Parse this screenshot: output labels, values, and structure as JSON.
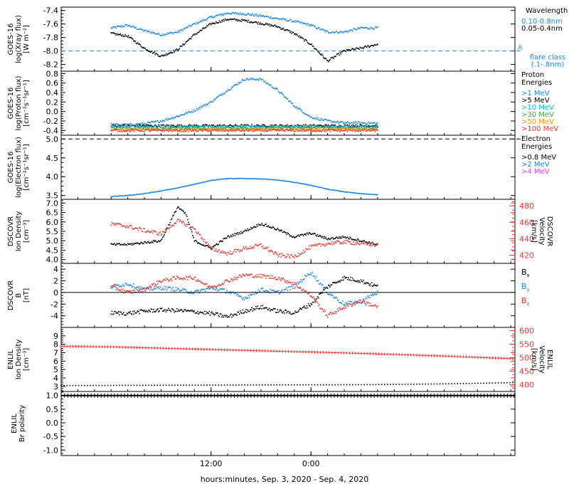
{
  "chart_data": [
    {
      "type": "scatter",
      "panel": "goes_xray",
      "ylabel": [
        "GOES-16",
        "log(Xray flux)",
        "[W m⁻²]"
      ],
      "ylim": [
        -8.3,
        -7.35
      ],
      "yticks": [
        "-7.4",
        "-7.6",
        "-7.8",
        "-8.0",
        "-8.2"
      ],
      "yticks_values": [
        -7.4,
        -7.6,
        -7.8,
        -8.0,
        -8.2
      ],
      "legend_title": "Wavelength",
      "series": [
        {
          "name": "0.10-0.8nm",
          "color": "#1e88e5",
          "x": [
            0,
            2,
            4,
            6,
            8,
            10,
            12,
            14,
            16,
            18,
            20,
            22,
            24,
            26,
            28,
            30,
            32
          ],
          "values": [
            -7.66,
            -7.62,
            -7.7,
            -7.76,
            -7.72,
            -7.6,
            -7.5,
            -7.44,
            -7.45,
            -7.48,
            -7.52,
            -7.56,
            -7.62,
            -7.72,
            -7.72,
            -7.66,
            -7.66
          ]
        },
        {
          "name": "0.05-0.4nm",
          "color": "#000000",
          "x": [
            0,
            2,
            4,
            6,
            8,
            10,
            12,
            14,
            16,
            18,
            20,
            22,
            24,
            26,
            28,
            30,
            32
          ],
          "values": [
            -7.74,
            -7.78,
            -7.96,
            -8.08,
            -7.98,
            -7.76,
            -7.6,
            -7.53,
            -7.55,
            -7.59,
            -7.64,
            -7.74,
            -7.9,
            -8.15,
            -8.0,
            -7.96,
            -7.9
          ]
        }
      ],
      "reference_line": {
        "value": -8.0,
        "color": "#1e88e5",
        "label": [
          "flare class",
          "(.1-.8nm)"
        ],
        "marker": "A"
      }
    },
    {
      "type": "scatter",
      "panel": "goes_proton",
      "ylabel": [
        "GOES-16",
        "log(Proton flux)",
        "[cm⁻²s⁻¹sr⁻¹]"
      ],
      "ylim": [
        -0.5,
        0.85
      ],
      "yticks": [
        "0.8",
        "0.6",
        "0.4",
        "0.2",
        "0.0",
        "-0.2",
        "-0.4"
      ],
      "yticks_values": [
        0.8,
        0.6,
        0.4,
        0.2,
        0.0,
        -0.2,
        -0.4
      ],
      "legend_title": [
        "Proton",
        "Energies"
      ],
      "series": [
        {
          "name": ">1 MeV",
          "color": "#1e88e5",
          "x": [
            0,
            2,
            4,
            6,
            8,
            10,
            12,
            14,
            16,
            18,
            20,
            22,
            24,
            26,
            28,
            30,
            32
          ],
          "values": [
            -0.28,
            -0.28,
            -0.26,
            -0.2,
            -0.1,
            0.02,
            0.2,
            0.45,
            0.68,
            0.68,
            0.45,
            0.12,
            -0.12,
            -0.2,
            -0.24,
            -0.24,
            -0.25
          ]
        },
        {
          "name": ">5 MeV",
          "color": "#000000",
          "x": [
            0,
            8,
            16,
            24,
            32
          ],
          "values": [
            -0.3,
            -0.3,
            -0.3,
            -0.3,
            -0.3
          ]
        },
        {
          "name": ">10 MeV",
          "color": "#00bcd4",
          "x": [
            0,
            8,
            16,
            24,
            32
          ],
          "values": [
            -0.32,
            -0.32,
            -0.32,
            -0.32,
            -0.32
          ]
        },
        {
          "name": ">30 MeV",
          "color": "#43a047",
          "x": [
            0,
            8,
            16,
            24,
            32
          ],
          "values": [
            -0.35,
            -0.35,
            -0.35,
            -0.35,
            -0.35
          ]
        },
        {
          "name": ">50 MeV",
          "color": "#ff9800",
          "x": [
            0,
            8,
            16,
            24,
            32
          ],
          "values": [
            -0.38,
            -0.38,
            -0.38,
            -0.38,
            -0.38
          ]
        },
        {
          "name": ">100 MeV",
          "color": "#e53935",
          "x": [
            0,
            8,
            16,
            24,
            32
          ],
          "values": [
            -0.4,
            -0.4,
            -0.4,
            -0.4,
            -0.4
          ]
        }
      ]
    },
    {
      "type": "scatter",
      "panel": "goes_electron",
      "ylabel": [
        "GOES-16",
        "log(Electron flux)",
        "[cm⁻²s⁻¹sr⁻¹]"
      ],
      "ylim": [
        3.4,
        5.1
      ],
      "yticks": [
        "5.0",
        "4.5",
        "4.0",
        "3.5"
      ],
      "yticks_values": [
        5.0,
        4.5,
        4.0,
        3.5
      ],
      "legend_title": [
        "Electron",
        "Energies"
      ],
      "series": [
        {
          "name": ">0.8 MeV",
          "color": "#000000",
          "x": [],
          "values": []
        },
        {
          "name": ">2 MeV",
          "color": "#1e88e5",
          "x": [
            0,
            2,
            4,
            6,
            8,
            10,
            12,
            14,
            16,
            18,
            20,
            22,
            24,
            26,
            28,
            30,
            32
          ],
          "values": [
            3.47,
            3.5,
            3.55,
            3.62,
            3.7,
            3.8,
            3.9,
            3.95,
            3.95,
            3.94,
            3.91,
            3.85,
            3.77,
            3.67,
            3.6,
            3.55,
            3.52
          ]
        },
        {
          "name": ">4 MeV",
          "color": "#e040fb",
          "x": [],
          "values": []
        }
      ],
      "reference_line": {
        "value": 5.0,
        "color": "#000000"
      }
    },
    {
      "type": "scatter",
      "panel": "dscovr_plasma",
      "ylabel": [
        "DSCOVR",
        "Ion Density",
        "[cm⁻³]"
      ],
      "ylabel_right": [
        "DSCOVR",
        "Velocity",
        "[km/s]"
      ],
      "ylim": [
        3.8,
        7.2
      ],
      "ylim_right": [
        410,
        488
      ],
      "yticks": [
        "7.0",
        "6.5",
        "6.0",
        "5.5",
        "5.0",
        "4.5",
        "4.0"
      ],
      "yticks_values": [
        7.0,
        6.5,
        6.0,
        5.5,
        5.0,
        4.5,
        4.0
      ],
      "yticks_right": [
        "480",
        "460",
        "440",
        "420"
      ],
      "yticks_right_values": [
        480,
        460,
        440,
        420
      ],
      "series": [
        {
          "name": "Ion Density",
          "color": "#000000",
          "axis": "left",
          "x": [
            0,
            2,
            4,
            6,
            8,
            9,
            10,
            12,
            14,
            16,
            18,
            20,
            22,
            24,
            26,
            28,
            30,
            32
          ],
          "values": [
            4.8,
            4.8,
            4.9,
            5.0,
            6.8,
            6.4,
            5.0,
            4.6,
            5.2,
            5.5,
            5.9,
            5.6,
            5.2,
            5.4,
            5.1,
            5.2,
            5.0,
            4.8
          ]
        },
        {
          "name": "Velocity",
          "color": "#e53935",
          "axis": "right",
          "x": [
            0,
            2,
            4,
            6,
            8,
            10,
            12,
            14,
            16,
            18,
            20,
            22,
            24,
            26,
            28,
            30,
            32
          ],
          "values": [
            458,
            455,
            450,
            446,
            462,
            452,
            428,
            422,
            428,
            432,
            420,
            418,
            430,
            434,
            436,
            434,
            432
          ]
        }
      ]
    },
    {
      "type": "scatter",
      "panel": "dscovr_mag",
      "ylabel": [
        "DSCOVR",
        "B",
        "[nT]"
      ],
      "ylim": [
        -6,
        5
      ],
      "yticks": [
        "4",
        "2",
        "0",
        "-2",
        "-4"
      ],
      "yticks_values": [
        4,
        2,
        0,
        -2,
        -4
      ],
      "series": [
        {
          "name": "Bx",
          "label": "B",
          "subscript": "x",
          "color": "#000000",
          "x": [
            0,
            2,
            4,
            6,
            8,
            10,
            12,
            14,
            16,
            18,
            20,
            22,
            24,
            26,
            28,
            30,
            32
          ],
          "values": [
            -3.5,
            -3.6,
            -3.2,
            -3.0,
            -3.1,
            -3.3,
            -3.6,
            -4.2,
            -3.2,
            -2.5,
            -3.2,
            -3.5,
            -2.0,
            1.0,
            2.5,
            2.0,
            1.0
          ]
        },
        {
          "name": "By",
          "label": "B",
          "subscript": "y",
          "color": "#1e88e5",
          "x": [
            0,
            2,
            4,
            6,
            8,
            10,
            12,
            14,
            16,
            18,
            20,
            22,
            24,
            26,
            28,
            30,
            32
          ],
          "values": [
            1.0,
            1.5,
            0.5,
            0.8,
            0.5,
            0.0,
            0.8,
            0.2,
            -1.0,
            0.5,
            0.0,
            1.0,
            3.5,
            0.0,
            -2.0,
            -1.5,
            0.0
          ]
        },
        {
          "name": "Bz",
          "label": "B",
          "subscript": "z",
          "color": "#e53935",
          "x": [
            0,
            2,
            4,
            6,
            8,
            10,
            12,
            14,
            16,
            18,
            20,
            22,
            24,
            26,
            28,
            30,
            32
          ],
          "values": [
            1.0,
            0.0,
            0.5,
            2.0,
            2.5,
            2.5,
            0.8,
            2.0,
            3.0,
            2.8,
            2.5,
            1.5,
            -0.5,
            -4.0,
            -2.5,
            -1.5,
            -2.5
          ]
        }
      ]
    },
    {
      "type": "scatter",
      "panel": "enlil_plasma",
      "ylabel": [
        "ENLIL",
        "Ion Density",
        "[cm⁻³]"
      ],
      "ylabel_right": [
        "ENLIL",
        "Velocity",
        "[km/s]"
      ],
      "ylim": [
        2.4,
        10.0
      ],
      "ylim_right": [
        375,
        612
      ],
      "yticks": [
        "9",
        "8",
        "7",
        "6",
        "5",
        "4",
        "3"
      ],
      "yticks_values": [
        9,
        8,
        7,
        6,
        5,
        4,
        3
      ],
      "yticks_right": [
        "600",
        "550",
        "500",
        "450",
        "400"
      ],
      "yticks_right_values": [
        600,
        550,
        500,
        450,
        400
      ],
      "series": [
        {
          "name": "Ion Density",
          "color": "#000000",
          "axis": "left",
          "x": [
            -6,
            0,
            10,
            20,
            30,
            40,
            48.5
          ],
          "values": [
            3.1,
            3.12,
            3.15,
            3.18,
            3.2,
            3.3,
            3.45
          ]
        },
        {
          "name": "Velocity",
          "color": "#e53935",
          "axis": "right",
          "x": [
            -6,
            0,
            10,
            20,
            30,
            40,
            48.5
          ],
          "values": [
            542,
            540,
            532,
            524,
            516,
            506,
            496
          ]
        }
      ]
    },
    {
      "type": "line",
      "panel": "enlil_polarity",
      "ylabel": [
        "ENLIL",
        "Br polarity"
      ],
      "ylim": [
        -1.2,
        1.15
      ],
      "yticks": [
        "1.0",
        "0.5",
        "0.0",
        "-0.5",
        "-1.0"
      ],
      "yticks_values": [
        1.0,
        0.5,
        0.0,
        -0.5,
        -1.0
      ],
      "series": [
        {
          "name": "Br polarity",
          "color": "#000000",
          "x": [
            -6,
            48.5
          ],
          "values": [
            1.0,
            1.0
          ]
        }
      ],
      "xticks": [
        "12:00",
        "0:00"
      ],
      "xticks_values": [
        12,
        24
      ],
      "xlabel": "hours:minutes, Sep.  3, 2020 - Sep.  4, 2020"
    }
  ],
  "axes_layout": {
    "x_range_hours": [
      -6,
      48.5
    ]
  }
}
